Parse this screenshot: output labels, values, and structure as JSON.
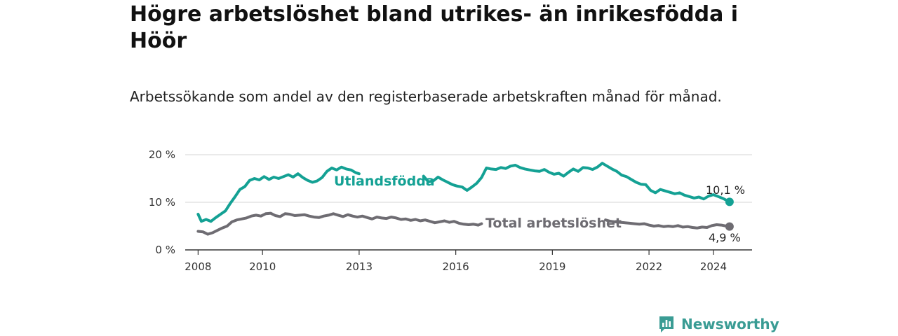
{
  "header": {
    "title": "Högre arbetslöshet bland utrikes- än inrikesfödda i Höör",
    "subtitle": "Arbetssökande som andel av den registerbaserade arbetskraften månad för månad."
  },
  "brand": {
    "name": "Newsworthy",
    "icon": "newsworthy-logo-icon",
    "color": "#3a9c94"
  },
  "chart_data": {
    "type": "line",
    "title": "Högre arbetslöshet bland utrikes- än inrikesfödda i Höör",
    "subtitle": "Arbetssökande som andel av den registerbaserade arbetskraften månad för månad.",
    "x_ticks": [
      {
        "label": "2008",
        "value": 2008.0
      },
      {
        "label": "2010",
        "value": 2010.0
      },
      {
        "label": "2013",
        "value": 2013.0
      },
      {
        "label": "2016",
        "value": 2016.0
      },
      {
        "label": "2019",
        "value": 2019.0
      },
      {
        "label": "2022",
        "value": 2022.0
      },
      {
        "label": "2024",
        "value": 2024.0
      }
    ],
    "y_ticks": [
      {
        "label": "0 %",
        "value": 0
      },
      {
        "label": "10 %",
        "value": 10
      },
      {
        "label": "20 %",
        "value": 20
      }
    ],
    "xlim": [
      2007.6,
      2025.2
    ],
    "ylim": [
      0,
      20
    ],
    "grid": true,
    "series": [
      {
        "name": "Utlandsfödda",
        "color": "#14a194",
        "end_label": "10,1 %",
        "points": [
          [
            2008.0,
            7.5
          ],
          [
            2008.1,
            6.0
          ],
          [
            2008.25,
            6.4
          ],
          [
            2008.4,
            6.0
          ],
          [
            2008.55,
            6.8
          ],
          [
            2008.7,
            7.5
          ],
          [
            2008.85,
            8.2
          ],
          [
            2009.0,
            9.8
          ],
          [
            2009.15,
            11.2
          ],
          [
            2009.3,
            12.7
          ],
          [
            2009.45,
            13.3
          ],
          [
            2009.6,
            14.6
          ],
          [
            2009.75,
            15.0
          ],
          [
            2009.9,
            14.7
          ],
          [
            2010.05,
            15.4
          ],
          [
            2010.2,
            14.8
          ],
          [
            2010.35,
            15.3
          ],
          [
            2010.5,
            15.0
          ],
          [
            2010.65,
            15.4
          ],
          [
            2010.8,
            15.8
          ],
          [
            2010.95,
            15.3
          ],
          [
            2011.1,
            16.0
          ],
          [
            2011.25,
            15.2
          ],
          [
            2011.4,
            14.6
          ],
          [
            2011.55,
            14.2
          ],
          [
            2011.7,
            14.5
          ],
          [
            2011.85,
            15.2
          ],
          [
            2012.0,
            16.5
          ],
          [
            2012.15,
            17.2
          ],
          [
            2012.3,
            16.8
          ],
          [
            2012.45,
            17.4
          ],
          [
            2012.6,
            17.0
          ],
          [
            2012.75,
            16.8
          ],
          [
            2012.9,
            16.2
          ],
          [
            2013.0,
            16.0
          ],
          [
            2015.0,
            15.5
          ],
          [
            2015.15,
            14.3
          ],
          [
            2015.3,
            14.5
          ],
          [
            2015.45,
            15.3
          ],
          [
            2015.6,
            14.7
          ],
          [
            2015.75,
            14.2
          ],
          [
            2015.9,
            13.7
          ],
          [
            2016.05,
            13.4
          ],
          [
            2016.2,
            13.2
          ],
          [
            2016.35,
            12.5
          ],
          [
            2016.5,
            13.2
          ],
          [
            2016.65,
            14.0
          ],
          [
            2016.8,
            15.2
          ],
          [
            2016.95,
            17.2
          ],
          [
            2017.1,
            17.0
          ],
          [
            2017.25,
            16.9
          ],
          [
            2017.4,
            17.3
          ],
          [
            2017.55,
            17.1
          ],
          [
            2017.7,
            17.6
          ],
          [
            2017.85,
            17.8
          ],
          [
            2018.0,
            17.3
          ],
          [
            2018.15,
            17.0
          ],
          [
            2018.3,
            16.8
          ],
          [
            2018.45,
            16.6
          ],
          [
            2018.6,
            16.5
          ],
          [
            2018.75,
            16.9
          ],
          [
            2018.9,
            16.3
          ],
          [
            2019.05,
            15.9
          ],
          [
            2019.2,
            16.1
          ],
          [
            2019.35,
            15.5
          ],
          [
            2019.5,
            16.3
          ],
          [
            2019.65,
            17.0
          ],
          [
            2019.8,
            16.5
          ],
          [
            2019.95,
            17.3
          ],
          [
            2020.1,
            17.2
          ],
          [
            2020.25,
            16.9
          ],
          [
            2020.4,
            17.4
          ],
          [
            2020.55,
            18.2
          ],
          [
            2020.7,
            17.6
          ],
          [
            2020.85,
            17.0
          ],
          [
            2021.0,
            16.5
          ],
          [
            2021.15,
            15.7
          ],
          [
            2021.3,
            15.4
          ],
          [
            2021.45,
            14.8
          ],
          [
            2021.6,
            14.2
          ],
          [
            2021.75,
            13.8
          ],
          [
            2021.9,
            13.7
          ],
          [
            2022.05,
            12.5
          ],
          [
            2022.2,
            12.0
          ],
          [
            2022.35,
            12.7
          ],
          [
            2022.5,
            12.4
          ],
          [
            2022.65,
            12.1
          ],
          [
            2022.8,
            11.8
          ],
          [
            2022.95,
            12.0
          ],
          [
            2023.1,
            11.5
          ],
          [
            2023.25,
            11.2
          ],
          [
            2023.4,
            10.9
          ],
          [
            2023.55,
            11.1
          ],
          [
            2023.7,
            10.7
          ],
          [
            2023.85,
            11.3
          ],
          [
            2024.0,
            11.6
          ],
          [
            2024.15,
            11.2
          ],
          [
            2024.3,
            10.8
          ],
          [
            2024.5,
            10.1
          ]
        ]
      },
      {
        "name": "Total arbetslöshet",
        "color": "#6e6c72",
        "end_label": "4,9 %",
        "points": [
          [
            2008.0,
            3.9
          ],
          [
            2008.15,
            3.8
          ],
          [
            2008.3,
            3.3
          ],
          [
            2008.45,
            3.6
          ],
          [
            2008.6,
            4.1
          ],
          [
            2008.75,
            4.6
          ],
          [
            2008.9,
            5.0
          ],
          [
            2009.05,
            5.9
          ],
          [
            2009.2,
            6.3
          ],
          [
            2009.35,
            6.5
          ],
          [
            2009.5,
            6.7
          ],
          [
            2009.65,
            7.1
          ],
          [
            2009.8,
            7.3
          ],
          [
            2009.95,
            7.1
          ],
          [
            2010.1,
            7.6
          ],
          [
            2010.25,
            7.7
          ],
          [
            2010.4,
            7.2
          ],
          [
            2010.55,
            7.0
          ],
          [
            2010.7,
            7.6
          ],
          [
            2010.85,
            7.5
          ],
          [
            2011.0,
            7.2
          ],
          [
            2011.15,
            7.3
          ],
          [
            2011.3,
            7.4
          ],
          [
            2011.45,
            7.1
          ],
          [
            2011.6,
            6.9
          ],
          [
            2011.75,
            6.8
          ],
          [
            2011.9,
            7.1
          ],
          [
            2012.05,
            7.3
          ],
          [
            2012.2,
            7.6
          ],
          [
            2012.35,
            7.3
          ],
          [
            2012.5,
            7.0
          ],
          [
            2012.65,
            7.4
          ],
          [
            2012.8,
            7.1
          ],
          [
            2012.95,
            6.9
          ],
          [
            2013.1,
            7.1
          ],
          [
            2013.25,
            6.8
          ],
          [
            2013.4,
            6.5
          ],
          [
            2013.55,
            6.9
          ],
          [
            2013.7,
            6.7
          ],
          [
            2013.85,
            6.6
          ],
          [
            2014.0,
            6.9
          ],
          [
            2014.15,
            6.7
          ],
          [
            2014.3,
            6.4
          ],
          [
            2014.45,
            6.5
          ],
          [
            2014.6,
            6.2
          ],
          [
            2014.75,
            6.4
          ],
          [
            2014.9,
            6.1
          ],
          [
            2015.05,
            6.3
          ],
          [
            2015.2,
            6.0
          ],
          [
            2015.35,
            5.7
          ],
          [
            2015.5,
            5.9
          ],
          [
            2015.65,
            6.1
          ],
          [
            2015.8,
            5.8
          ],
          [
            2015.95,
            6.0
          ],
          [
            2016.1,
            5.6
          ],
          [
            2016.25,
            5.4
          ],
          [
            2016.4,
            5.3
          ],
          [
            2016.55,
            5.4
          ],
          [
            2016.7,
            5.2
          ],
          [
            2016.8,
            5.5
          ],
          [
            2020.65,
            6.3
          ],
          [
            2020.8,
            6.0
          ],
          [
            2020.95,
            5.9
          ],
          [
            2021.1,
            5.8
          ],
          [
            2021.25,
            5.7
          ],
          [
            2021.4,
            5.6
          ],
          [
            2021.55,
            5.5
          ],
          [
            2021.7,
            5.4
          ],
          [
            2021.85,
            5.5
          ],
          [
            2022.0,
            5.2
          ],
          [
            2022.15,
            5.0
          ],
          [
            2022.3,
            5.1
          ],
          [
            2022.45,
            4.9
          ],
          [
            2022.6,
            5.0
          ],
          [
            2022.75,
            4.9
          ],
          [
            2022.9,
            5.1
          ],
          [
            2023.05,
            4.8
          ],
          [
            2023.2,
            4.9
          ],
          [
            2023.35,
            4.7
          ],
          [
            2023.5,
            4.6
          ],
          [
            2023.65,
            4.8
          ],
          [
            2023.8,
            4.7
          ],
          [
            2023.95,
            5.1
          ],
          [
            2024.1,
            5.3
          ],
          [
            2024.25,
            5.2
          ],
          [
            2024.4,
            5.0
          ],
          [
            2024.5,
            4.9
          ]
        ]
      }
    ]
  }
}
